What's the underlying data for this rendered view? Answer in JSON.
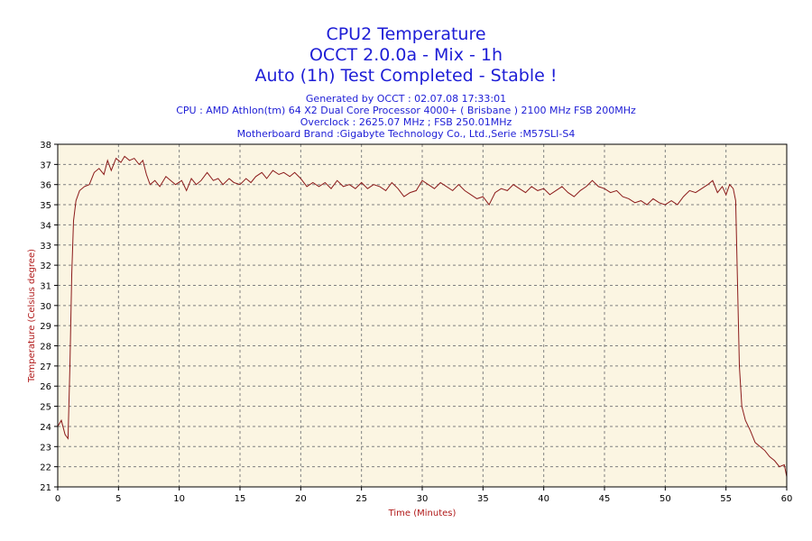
{
  "chart_data": {
    "type": "line",
    "title": "CPU2 Temperature",
    "subtitle": "OCCT 2.0.0a - Mix - 1h",
    "status": "Auto (1h) Test Completed - Stable !",
    "info_lines": [
      "Generated by OCCT : 02.07.08 17:33:01",
      "CPU : AMD Athlon(tm) 64 X2 Dual Core Processor 4000+ ( Brisbane ) 2100 MHz FSB 200MHz",
      "Overclock : 2625.07 MHz ; FSB 250.01MHz",
      "Motherboard Brand :Gigabyte Technology Co., Ltd.,Serie :M57SLI-S4"
    ],
    "xlabel": "Time (Minutes)",
    "ylabel": "Temperature (Celsius degree)",
    "xlim": [
      0,
      60
    ],
    "ylim": [
      21,
      38
    ],
    "xticks": [
      0,
      5,
      10,
      15,
      20,
      25,
      30,
      35,
      40,
      45,
      50,
      55,
      60
    ],
    "yticks": [
      21,
      22,
      23,
      24,
      25,
      26,
      27,
      28,
      29,
      30,
      31,
      32,
      33,
      34,
      35,
      36,
      37,
      38
    ],
    "grid": true,
    "colors": {
      "line": "#8b1a1a",
      "plot_bg": "#fbf5e2",
      "text": "#1d1dd6",
      "axis_label": "#b01818"
    },
    "series": [
      {
        "name": "CPU2 Temperature",
        "points": [
          [
            0,
            24.0
          ],
          [
            0.3,
            24.3
          ],
          [
            0.6,
            23.6
          ],
          [
            0.85,
            23.4
          ],
          [
            1.0,
            27.0
          ],
          [
            1.15,
            31.5
          ],
          [
            1.3,
            34.2
          ],
          [
            1.5,
            35.2
          ],
          [
            1.8,
            35.7
          ],
          [
            2.2,
            35.9
          ],
          [
            2.6,
            36.0
          ],
          [
            3.0,
            36.6
          ],
          [
            3.4,
            36.8
          ],
          [
            3.8,
            36.5
          ],
          [
            4.1,
            37.2
          ],
          [
            4.4,
            36.7
          ],
          [
            4.8,
            37.3
          ],
          [
            5.2,
            37.1
          ],
          [
            5.5,
            37.4
          ],
          [
            5.9,
            37.2
          ],
          [
            6.3,
            37.3
          ],
          [
            6.7,
            37.0
          ],
          [
            7.0,
            37.2
          ],
          [
            7.3,
            36.5
          ],
          [
            7.6,
            36.0
          ],
          [
            8.0,
            36.2
          ],
          [
            8.4,
            35.9
          ],
          [
            8.9,
            36.4
          ],
          [
            9.3,
            36.2
          ],
          [
            9.7,
            36.0
          ],
          [
            10.2,
            36.2
          ],
          [
            10.6,
            35.7
          ],
          [
            11.0,
            36.3
          ],
          [
            11.4,
            36.0
          ],
          [
            11.8,
            36.2
          ],
          [
            12.3,
            36.6
          ],
          [
            12.8,
            36.2
          ],
          [
            13.2,
            36.3
          ],
          [
            13.6,
            36.0
          ],
          [
            14.1,
            36.3
          ],
          [
            14.5,
            36.1
          ],
          [
            15.0,
            36.0
          ],
          [
            15.5,
            36.3
          ],
          [
            15.9,
            36.1
          ],
          [
            16.3,
            36.4
          ],
          [
            16.8,
            36.6
          ],
          [
            17.2,
            36.3
          ],
          [
            17.7,
            36.7
          ],
          [
            18.2,
            36.5
          ],
          [
            18.6,
            36.6
          ],
          [
            19.1,
            36.4
          ],
          [
            19.5,
            36.6
          ],
          [
            20.0,
            36.3
          ],
          [
            20.5,
            35.9
          ],
          [
            21.0,
            36.1
          ],
          [
            21.5,
            35.9
          ],
          [
            22.0,
            36.1
          ],
          [
            22.5,
            35.8
          ],
          [
            23.0,
            36.2
          ],
          [
            23.5,
            35.9
          ],
          [
            24.0,
            36.0
          ],
          [
            24.5,
            35.8
          ],
          [
            25.0,
            36.1
          ],
          [
            25.5,
            35.8
          ],
          [
            26.0,
            36.0
          ],
          [
            26.5,
            35.9
          ],
          [
            27.0,
            35.7
          ],
          [
            27.5,
            36.1
          ],
          [
            28.0,
            35.8
          ],
          [
            28.5,
            35.4
          ],
          [
            29.0,
            35.6
          ],
          [
            29.5,
            35.7
          ],
          [
            30.0,
            36.2
          ],
          [
            30.5,
            36.0
          ],
          [
            31.0,
            35.8
          ],
          [
            31.5,
            36.1
          ],
          [
            32.0,
            35.9
          ],
          [
            32.5,
            35.7
          ],
          [
            33.0,
            36.0
          ],
          [
            33.5,
            35.7
          ],
          [
            34.0,
            35.5
          ],
          [
            34.5,
            35.3
          ],
          [
            35.0,
            35.4
          ],
          [
            35.5,
            35.0
          ],
          [
            36.0,
            35.6
          ],
          [
            36.5,
            35.8
          ],
          [
            37.0,
            35.7
          ],
          [
            37.5,
            36.0
          ],
          [
            38.0,
            35.8
          ],
          [
            38.5,
            35.6
          ],
          [
            39.0,
            35.9
          ],
          [
            39.5,
            35.7
          ],
          [
            40.0,
            35.8
          ],
          [
            40.5,
            35.5
          ],
          [
            41.0,
            35.7
          ],
          [
            41.5,
            35.9
          ],
          [
            42.0,
            35.6
          ],
          [
            42.5,
            35.4
          ],
          [
            43.0,
            35.7
          ],
          [
            43.5,
            35.9
          ],
          [
            44.0,
            36.2
          ],
          [
            44.5,
            35.9
          ],
          [
            45.0,
            35.8
          ],
          [
            45.5,
            35.6
          ],
          [
            46.0,
            35.7
          ],
          [
            46.5,
            35.4
          ],
          [
            47.0,
            35.3
          ],
          [
            47.5,
            35.1
          ],
          [
            48.0,
            35.2
          ],
          [
            48.5,
            35.0
          ],
          [
            49.0,
            35.3
          ],
          [
            49.5,
            35.1
          ],
          [
            50.0,
            35.0
          ],
          [
            50.5,
            35.2
          ],
          [
            51.0,
            35.0
          ],
          [
            51.5,
            35.4
          ],
          [
            52.0,
            35.7
          ],
          [
            52.5,
            35.6
          ],
          [
            53.0,
            35.8
          ],
          [
            53.5,
            36.0
          ],
          [
            53.9,
            36.2
          ],
          [
            54.3,
            35.6
          ],
          [
            54.7,
            35.9
          ],
          [
            55.0,
            35.5
          ],
          [
            55.3,
            36.0
          ],
          [
            55.6,
            35.8
          ],
          [
            55.8,
            35.2
          ],
          [
            55.95,
            31.0
          ],
          [
            56.1,
            27.0
          ],
          [
            56.3,
            25.0
          ],
          [
            56.6,
            24.3
          ],
          [
            57.0,
            23.8
          ],
          [
            57.4,
            23.2
          ],
          [
            57.8,
            23.0
          ],
          [
            58.2,
            22.8
          ],
          [
            58.6,
            22.5
          ],
          [
            59.0,
            22.3
          ],
          [
            59.4,
            22.0
          ],
          [
            59.8,
            22.1
          ],
          [
            60.0,
            21.5
          ]
        ]
      }
    ]
  }
}
